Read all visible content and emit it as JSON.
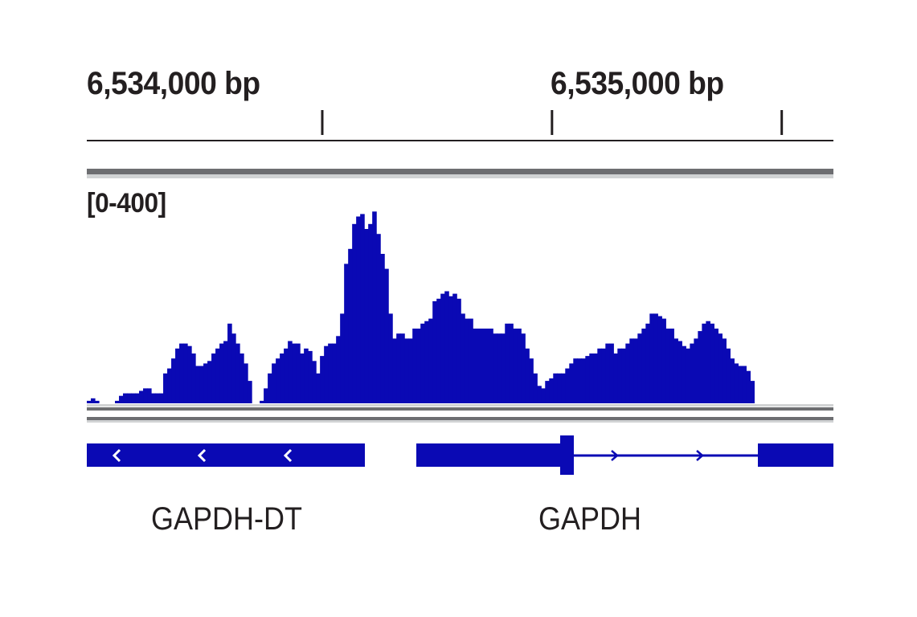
{
  "chart_data": {
    "type": "area",
    "genome_coordinates": {
      "start_label": "6,534,000 bp",
      "end_label": "6,535,000 bp",
      "ticks_bp": [
        6533600,
        6534000,
        6534400,
        6534800
      ]
    },
    "x_range_bp": [
      6533190,
      6534490
    ],
    "data_range_label": "[0-400]",
    "ylim": [
      0,
      400
    ],
    "bin_size_bp": 7,
    "series": [
      {
        "color": "#0a09b4",
        "values": [
          5,
          10,
          5,
          0,
          0,
          0,
          0,
          5,
          15,
          20,
          20,
          20,
          20,
          25,
          30,
          30,
          20,
          20,
          20,
          60,
          70,
          90,
          110,
          120,
          120,
          115,
          100,
          75,
          75,
          80,
          85,
          100,
          110,
          120,
          125,
          160,
          140,
          120,
          100,
          80,
          45,
          0,
          0,
          5,
          30,
          60,
          80,
          90,
          100,
          110,
          125,
          120,
          120,
          100,
          110,
          105,
          85,
          60,
          95,
          115,
          120,
          120,
          135,
          180,
          280,
          310,
          360,
          375,
          380,
          350,
          360,
          385,
          340,
          300,
          270,
          180,
          130,
          140,
          140,
          130,
          130,
          150,
          150,
          160,
          165,
          170,
          205,
          210,
          220,
          225,
          215,
          220,
          210,
          180,
          170,
          170,
          150,
          150,
          150,
          150,
          150,
          140,
          140,
          140,
          160,
          160,
          150,
          150,
          140,
          110,
          90,
          60,
          35,
          30,
          45,
          50,
          60,
          60,
          60,
          70,
          80,
          90,
          90,
          90,
          95,
          100,
          100,
          110,
          110,
          120,
          120,
          100,
          110,
          110,
          120,
          130,
          130,
          140,
          150,
          160,
          180,
          180,
          175,
          170,
          150,
          150,
          130,
          125,
          115,
          110,
          120,
          130,
          145,
          160,
          165,
          160,
          150,
          140,
          130,
          110,
          90,
          80,
          75,
          75,
          65,
          45
        ]
      }
    ],
    "genes": [
      {
        "name": "GAPDH-DT",
        "strand": "-"
      },
      {
        "name": "GAPDH",
        "strand": "+"
      }
    ],
    "colors": {
      "signal": "#0a09b4",
      "gene": "#0a09b4",
      "text": "#231f20",
      "divider": "#6d6e71"
    }
  }
}
